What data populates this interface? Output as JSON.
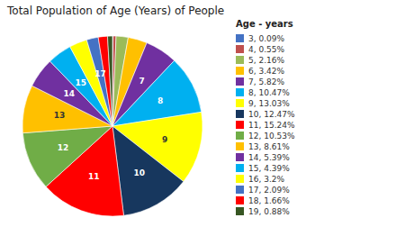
{
  "chart_data": {
    "type": "pie",
    "title": "Total Population of Age (Years) of People",
    "legend_title": "Age - years",
    "categories": [
      "3, 0.09%",
      "4, 0.55%",
      "5, 2.16%",
      "6, 3.42%",
      "7, 5.82%",
      "8, 10.47%",
      "9, 13.03%",
      "10, 12.47%",
      "11, 15.24%",
      "12, 10.53%",
      "13, 8.61%",
      "14, 5.39%",
      "15, 4.39%",
      "16, 3.2%",
      "17, 2.09%",
      "18, 1.66%",
      "19, 0.88%"
    ],
    "values": [
      0.09,
      0.55,
      2.16,
      3.42,
      5.82,
      10.47,
      13.03,
      12.47,
      15.24,
      10.53,
      8.61,
      5.39,
      4.39,
      3.2,
      2.09,
      1.66,
      0.88
    ],
    "colors": [
      "#4472C4",
      "#C0504D",
      "#9BBB59",
      "#FFC000",
      "#7030A0",
      "#00B0F0",
      "#FFFF00",
      "#17375E",
      "#FF0000",
      "#70AD47",
      "#FFC000",
      "#7030A0",
      "#00B0F0",
      "#FFFF00",
      "#4472C4",
      "#FF0000",
      "#375623"
    ],
    "slice_labels": [
      null,
      null,
      null,
      null,
      "7",
      "8",
      "9",
      "10",
      "11",
      "12",
      "13",
      "14",
      "15",
      null,
      "17",
      null,
      null
    ],
    "legend": "right"
  }
}
